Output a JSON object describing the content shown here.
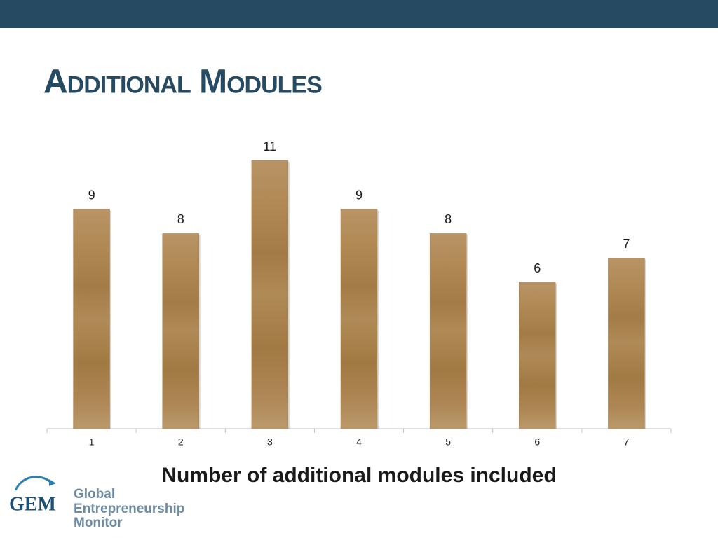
{
  "chart_data": {
    "type": "bar",
    "title": "Additional Modules",
    "x_label": "Number of additional modules included",
    "categories": [
      "1",
      "2",
      "3",
      "4",
      "5",
      "6",
      "7"
    ],
    "values": [
      9,
      8,
      11,
      9,
      8,
      6,
      7
    ],
    "color": "#a87f4e"
  },
  "logo": {
    "mark": "GEM",
    "lines": [
      "Global",
      "Entrepreneurship",
      "Monitor"
    ]
  }
}
